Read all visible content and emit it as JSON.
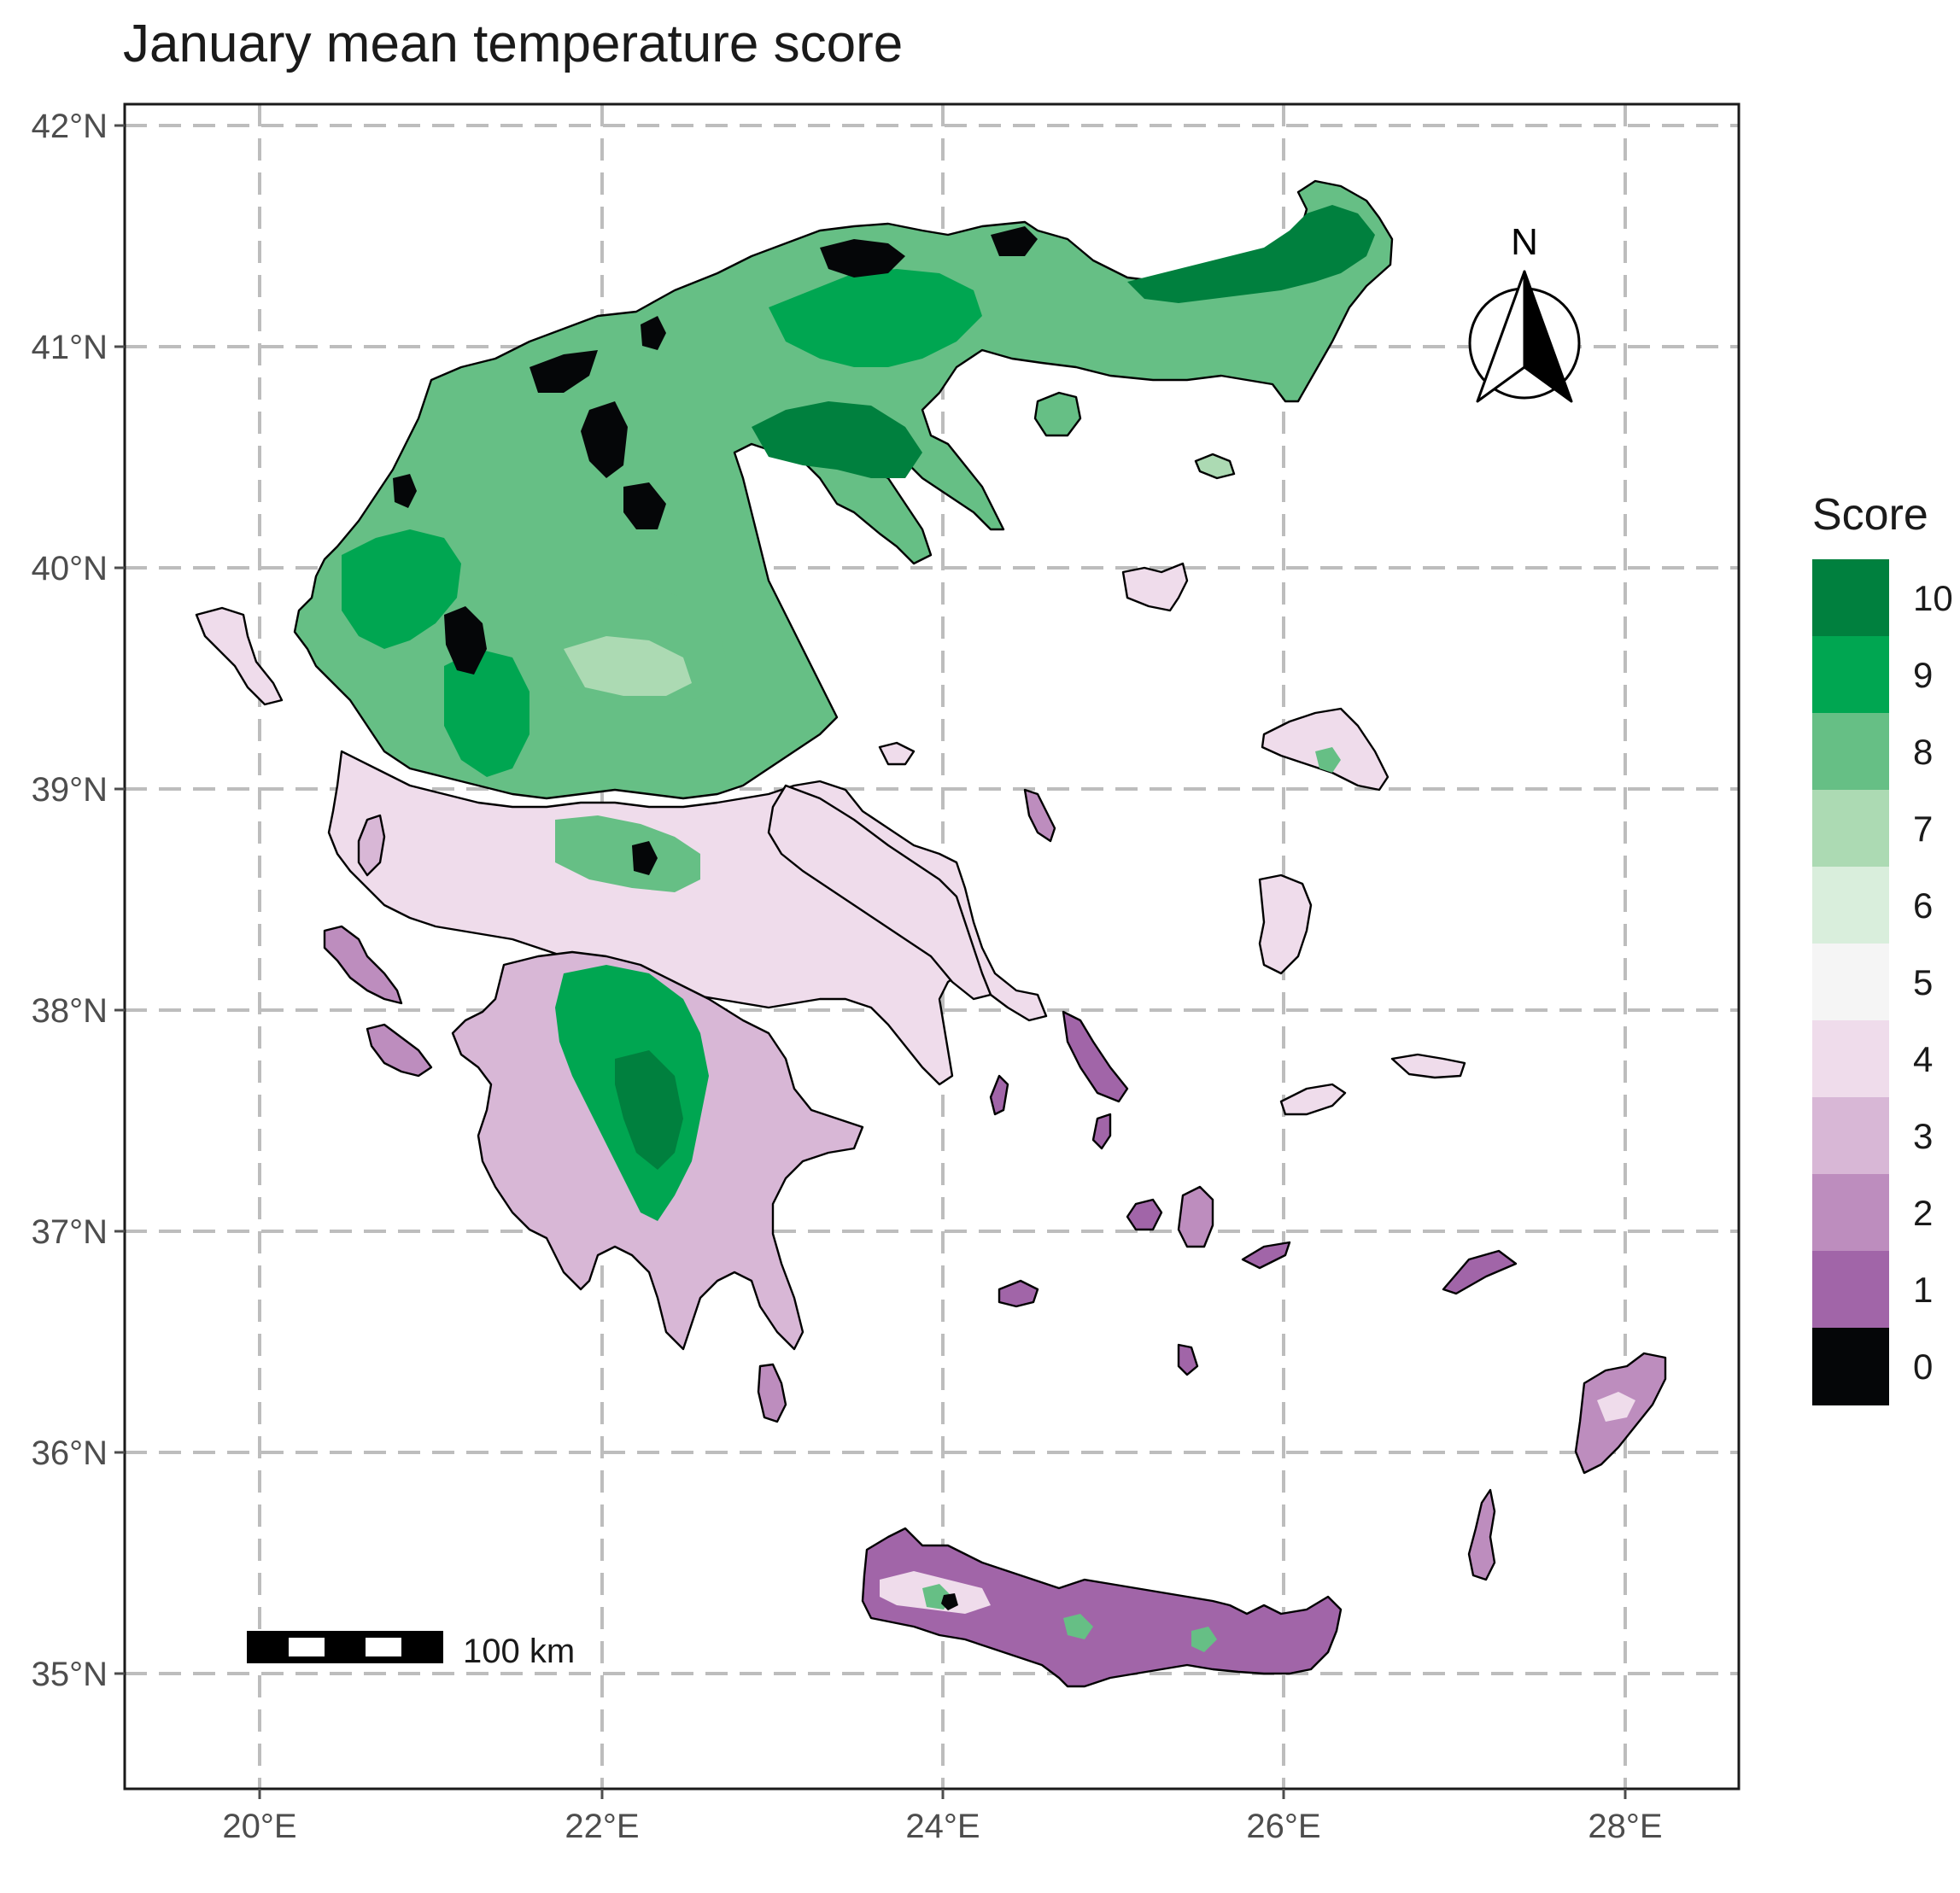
{
  "map": {
    "title": "January mean temperature score",
    "lon_ticks": [
      "20°E",
      "22°E",
      "24°E",
      "26°E",
      "28°E"
    ],
    "lat_ticks": [
      "42°N",
      "41°N",
      "40°N",
      "39°N",
      "38°N",
      "37°N",
      "36°N",
      "35°N"
    ],
    "legend": {
      "title": "Score",
      "items": [
        {
          "label": "10",
          "color": "#00803e"
        },
        {
          "label": "9",
          "color": "#00a651"
        },
        {
          "label": "8",
          "color": "#66bf85"
        },
        {
          "label": "7",
          "color": "#acdab3"
        },
        {
          "label": "6",
          "color": "#d9eedc"
        },
        {
          "label": "5",
          "color": "#f5f5f5"
        },
        {
          "label": "4",
          "color": "#efdceb"
        },
        {
          "label": "3",
          "color": "#d8b7d6"
        },
        {
          "label": "2",
          "color": "#bd8dbe"
        },
        {
          "label": "1",
          "color": "#a165a8"
        },
        {
          "label": "0",
          "color": "#050608"
        }
      ]
    },
    "scale_bar": {
      "label": "100 km"
    },
    "north_arrow": {
      "label": "N"
    }
  }
}
